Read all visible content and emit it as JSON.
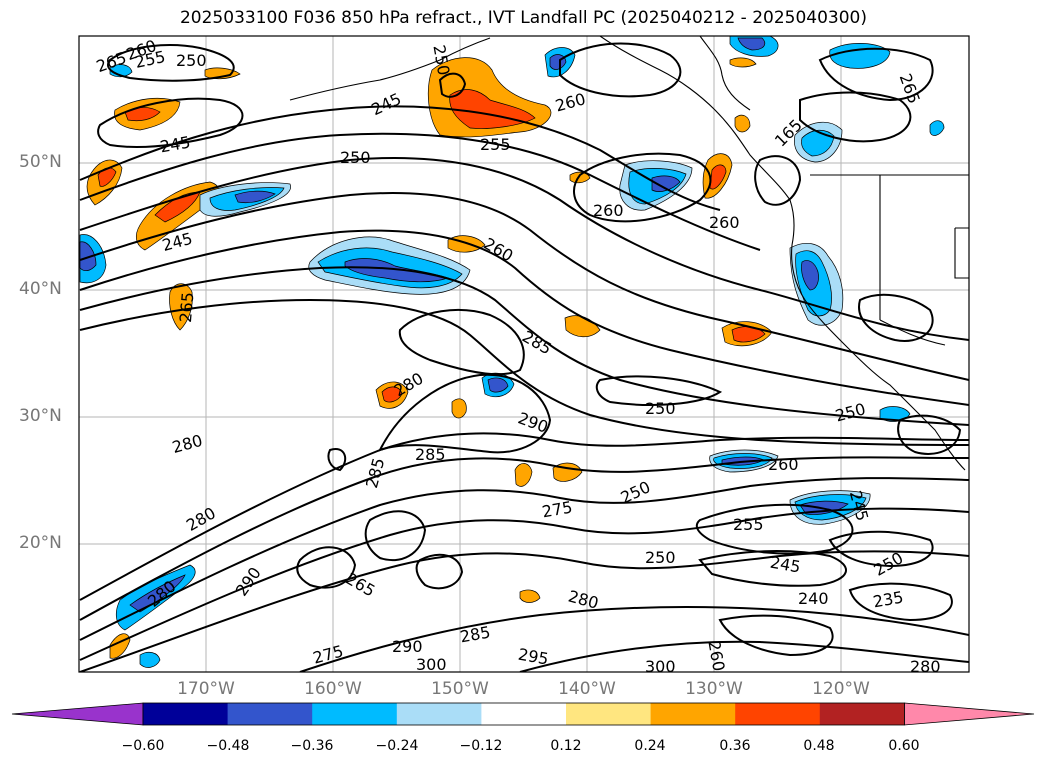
{
  "title": "2025033100 F036 850 hPa refract., IVT Landfall PC (2025040212 - 2025040300)",
  "latitude_labels": [
    "50°N",
    "40°N",
    "30°N",
    "20°N"
  ],
  "longitude_labels": [
    "170°W",
    "160°W",
    "150°W",
    "140°W",
    "130°W",
    "120°W"
  ],
  "colorbar": {
    "ticks": [
      "−0.60",
      "−0.48",
      "−0.36",
      "−0.24",
      "−0.12",
      "0.12",
      "0.24",
      "0.36",
      "0.48",
      "0.60"
    ],
    "colors": [
      "#9933cc",
      "#000099",
      "#3355cc",
      "#00bbff",
      "#aaddf7",
      "#ffffff",
      "#ffe680",
      "#ffa500",
      "#ff4400",
      "#b22222",
      "#ff88aa"
    ]
  },
  "contour_labels": {
    "l1": "265",
    "l2": "260",
    "l3": "255",
    "l4": "250",
    "l5": "250",
    "l6": "245",
    "l7": "245",
    "l8": "250",
    "l9": "255",
    "l10": "260",
    "l11": "260",
    "l12": "260",
    "l13": "165",
    "l14": "265",
    "l15": "245",
    "l16": "260",
    "l17": "265",
    "l18": "285",
    "l19": "280",
    "l20": "290",
    "l21": "285",
    "l22": "280",
    "l23": "285",
    "l24": "250",
    "l25": "260",
    "l26": "250",
    "l27": "245",
    "l28": "275",
    "l29": "250",
    "l30": "255",
    "l31": "250",
    "l32": "245",
    "l33": "250",
    "l34": "280",
    "l35": "240",
    "l36": "235",
    "l37": "265",
    "l38": "290",
    "l39": "280",
    "l40": "285",
    "l41": "275",
    "l42": "290",
    "l43": "300",
    "l44": "295",
    "l45": "300",
    "l46": "280",
    "l47": "280",
    "l48": "260"
  }
}
